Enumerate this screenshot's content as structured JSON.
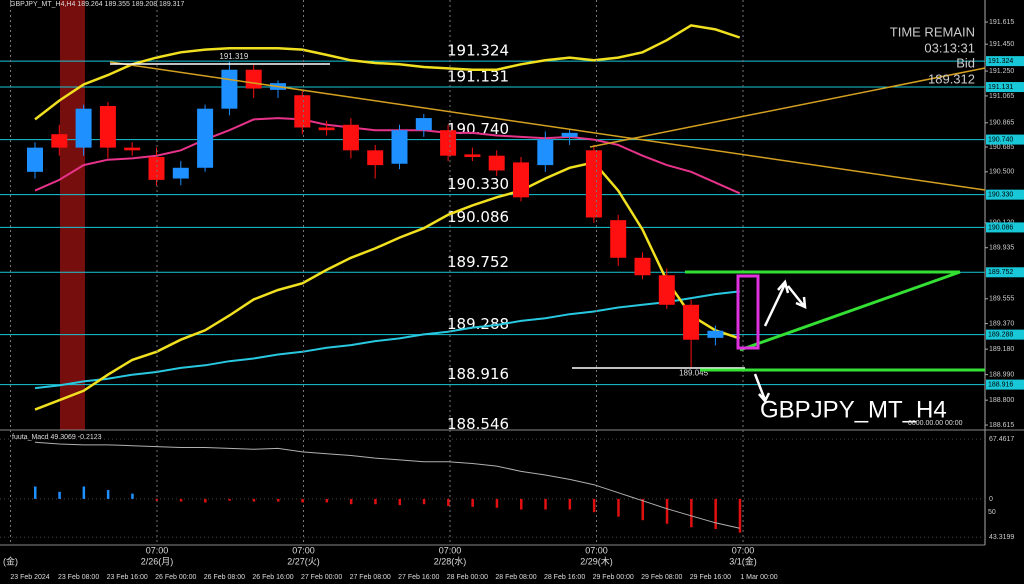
{
  "chart_data": {
    "type": "candlestick",
    "title": "GBPJPY_MT_H4",
    "header": "GBPJPY_MT_H4,H4 189.264 189.355 189.208 189.317",
    "categories": [
      "23 Feb 2024",
      null,
      "23 Feb 08:00",
      null,
      "23 Feb 16:00",
      null,
      "26 Feb 00:00",
      null,
      "26 Feb 08:00",
      null,
      "26 Feb 16:00",
      null,
      "27 Feb 00:00",
      null,
      "27 Feb 08:00",
      null,
      "27 Feb 16:00",
      null,
      "28 Feb 00:00",
      null,
      "28 Feb 08:00",
      null,
      "28 Feb 16:00",
      null,
      "29 Feb 00:00",
      null,
      "29 Feb 08:00",
      null,
      "29 Feb 16:00",
      null,
      "1 Mar 00:00"
    ],
    "open": [
      190.5,
      190.78,
      190.68,
      190.99,
      190.68,
      190.61,
      190.45,
      190.53,
      190.97,
      191.26,
      191.11,
      191.07,
      190.83,
      190.85,
      190.66,
      190.56,
      190.81,
      190.81,
      190.63,
      190.62,
      190.57,
      190.55,
      190.76,
      190.66,
      190.14,
      189.86,
      189.73,
      189.51,
      189.264,
      null,
      null
    ],
    "high": [
      190.72,
      190.85,
      191.0,
      191.02,
      190.72,
      190.68,
      190.58,
      191.0,
      191.319,
      191.3,
      191.18,
      191.1,
      190.88,
      190.9,
      190.7,
      190.85,
      190.93,
      190.85,
      190.68,
      190.66,
      190.61,
      190.8,
      190.82,
      190.7,
      190.18,
      189.9,
      189.78,
      189.55,
      189.355,
      null,
      null
    ],
    "low": [
      190.45,
      190.62,
      190.62,
      190.6,
      190.62,
      190.4,
      190.4,
      190.5,
      190.92,
      191.05,
      191.05,
      190.78,
      190.77,
      190.6,
      190.45,
      190.52,
      190.76,
      190.58,
      190.58,
      190.47,
      190.28,
      190.5,
      190.7,
      190.12,
      189.8,
      189.7,
      189.48,
      189.045,
      189.208,
      null,
      null
    ],
    "close": [
      190.68,
      190.68,
      190.97,
      190.68,
      190.66,
      190.44,
      190.53,
      190.97,
      191.26,
      191.12,
      191.16,
      190.83,
      190.81,
      190.66,
      190.55,
      190.81,
      190.9,
      190.62,
      190.61,
      190.51,
      190.31,
      190.74,
      190.79,
      190.16,
      189.86,
      189.73,
      189.51,
      189.25,
      189.317,
      null,
      null
    ],
    "up_color": "#1e90ff",
    "down_color": "#ff1010",
    "ylim": [
      188.578,
      191.779
    ],
    "yticks": [
      191.615,
      {
        "value": 191.45,
        "label": "191.450"
      },
      {
        "value": 191.25,
        "label": "191.250"
      },
      191.065,
      190.865,
      190.685,
      {
        "value": 190.5,
        "label": "190.500"
      },
      {
        "value": 190.12,
        "label": "190.120"
      },
      189.935,
      189.555,
      {
        "value": 189.37,
        "label": "189.370"
      },
      {
        "value": 189.18,
        "label": "189.180"
      },
      {
        "value": 188.99,
        "label": "188.990"
      },
      {
        "value": 188.8,
        "label": "188.800"
      },
      188.615
    ],
    "levels": [
      191.324,
      191.131,
      {
        "value": 190.74,
        "label": "190.740"
      },
      {
        "value": 190.33,
        "label": "190.330"
      },
      190.086,
      189.752,
      189.288,
      188.916,
      188.546
    ],
    "level_color": "#18c8d8",
    "overlays": [
      {
        "color": "#e8338a",
        "values": [
          190.36,
          190.44,
          190.55,
          190.59,
          190.6,
          190.62,
          190.66,
          190.74,
          190.81,
          190.89,
          190.9,
          190.89,
          190.85,
          190.83,
          190.81,
          190.81,
          190.81,
          190.79,
          190.79,
          190.77,
          190.76,
          190.75,
          190.76,
          190.74,
          190.7,
          190.62,
          190.55,
          190.5,
          190.42,
          190.34,
          null
        ]
      },
      {
        "color": "#28c8e0",
        "values": [
          188.89,
          188.91,
          188.94,
          188.96,
          188.99,
          189.01,
          189.04,
          189.06,
          189.09,
          189.11,
          189.14,
          189.16,
          189.19,
          189.21,
          189.24,
          189.26,
          189.29,
          189.31,
          189.34,
          189.36,
          189.39,
          189.41,
          189.44,
          189.46,
          189.49,
          189.51,
          189.53,
          189.56,
          189.59,
          189.61,
          null
        ]
      },
      {
        "color": "#f0e020",
        "values": [
          188.73,
          188.8,
          188.87,
          188.99,
          189.1,
          189.16,
          189.25,
          189.32,
          189.43,
          189.55,
          189.62,
          189.67,
          189.77,
          189.86,
          189.93,
          190.01,
          190.08,
          190.18,
          190.25,
          190.31,
          190.36,
          190.45,
          190.53,
          190.57,
          190.36,
          190.07,
          189.69,
          189.43,
          189.32,
          189.26,
          null
        ]
      },
      {
        "color": "#f0e020",
        "values": [
          190.89,
          191.03,
          191.15,
          191.22,
          191.3,
          191.35,
          191.39,
          191.41,
          191.42,
          191.42,
          191.42,
          191.41,
          191.37,
          191.33,
          191.31,
          191.3,
          191.28,
          191.27,
          191.26,
          191.26,
          191.3,
          191.33,
          191.35,
          191.33,
          191.35,
          191.39,
          191.48,
          191.59,
          191.56,
          191.5,
          null
        ]
      }
    ],
    "high_label": "191.319",
    "low_label": "189.045",
    "time_remain": "TIME REMAIN",
    "countdown": "03:13:31",
    "bid_label": "Bid",
    "bid": 189.312,
    "footer_time": "0000.00.00 00:00",
    "day_markers": [
      {
        "date": "(金)"
      },
      {
        "time": "07:00",
        "date": "2/26(月)"
      },
      {
        "time": "07:00",
        "date": "2/27(火)"
      },
      {
        "time": "07:00",
        "date": "2/28(水)"
      },
      {
        "time": "07:00",
        "date": "2/29(木)"
      },
      {
        "time": "07:00",
        "date": "3/1(金)"
      }
    ],
    "macd": {
      "title": "fuuta_Macd 49.3069 -0.2123",
      "ylim": [
        -52,
        75.5
      ],
      "yticks": [
        67.4617,
        0,
        {
          "value": -43.3199,
          "label": "43.3199"
        }
      ],
      "level_label": "50",
      "up_color": "#1e90ff",
      "down_color": "#e01010",
      "line_color": "#b0b0b0",
      "histogram": [
        14,
        8,
        14,
        10,
        6,
        -2,
        -3,
        -4,
        -2,
        -3,
        -3,
        -4,
        -4,
        -6,
        -6,
        -7,
        -6,
        -8,
        -9,
        -10,
        -12,
        -12,
        -12,
        -15,
        -20,
        -24,
        -28,
        -32,
        -34,
        -38,
        null
      ],
      "line": [
        64,
        62,
        61,
        61,
        60,
        59,
        58,
        58,
        57,
        56,
        57,
        53,
        51,
        49,
        46,
        44,
        42,
        42,
        40,
        37,
        31,
        27,
        22,
        16,
        7,
        -2,
        -11,
        -19,
        -27,
        -33,
        null
      ]
    }
  }
}
